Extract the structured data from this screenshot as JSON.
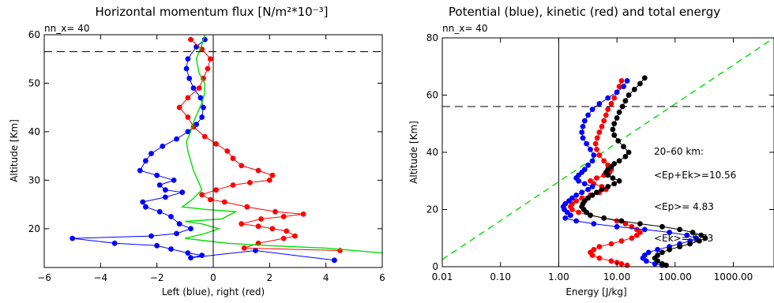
{
  "chart_data": [
    {
      "type": "line",
      "title": "Horizontal momentum flux [N/m²*10⁻³]",
      "subtitle": "nn_x=   40",
      "xlabel": "Left (blue), right (red)",
      "ylabel": "Altitude [Km]",
      "xlim": [
        -6,
        6
      ],
      "ylim": [
        12,
        60
      ],
      "xticks": [
        "−6",
        "−4",
        "−2",
        "0",
        "2",
        "4",
        "6"
      ],
      "yticks": [
        "20",
        "30",
        "40",
        "50",
        "60"
      ],
      "xtick_values": [
        -6,
        -4,
        -2,
        0,
        2,
        4,
        6
      ],
      "ytick_values": [
        20,
        30,
        40,
        50,
        60
      ],
      "hline": 56.5,
      "vline": 0,
      "series": [
        {
          "color": "#0000ff",
          "markers": true,
          "points": [
            [
              -0.3,
              59
            ],
            [
              -0.6,
              57.5
            ],
            [
              -0.9,
              55
            ],
            [
              -0.95,
              53
            ],
            [
              -0.85,
              51
            ],
            [
              -0.7,
              49
            ],
            [
              -0.45,
              47
            ],
            [
              -0.35,
              45
            ],
            [
              -0.4,
              43
            ],
            [
              -0.6,
              41.5
            ],
            [
              -0.9,
              40
            ],
            [
              -1.3,
              38.5
            ],
            [
              -1.8,
              37
            ],
            [
              -2.2,
              35.5
            ],
            [
              -2.4,
              34
            ],
            [
              -2.6,
              32
            ],
            [
              -2.0,
              31
            ],
            [
              -1.4,
              30
            ],
            [
              -1.9,
              29
            ],
            [
              -1.7,
              28
            ],
            [
              -1.1,
              27.5
            ],
            [
              -1.7,
              26.5
            ],
            [
              -2.5,
              25.5
            ],
            [
              -2.4,
              24.5
            ],
            [
              -1.9,
              23.5
            ],
            [
              -1.5,
              22.5
            ],
            [
              -1.2,
              21
            ],
            [
              -0.8,
              20
            ],
            [
              -1.3,
              19
            ],
            [
              -2.2,
              18.5
            ],
            [
              -5.0,
              18
            ],
            [
              -3.5,
              17
            ],
            [
              -2.0,
              16.5
            ],
            [
              -1.5,
              15.8
            ],
            [
              -0.9,
              15
            ],
            [
              -0.4,
              14.5
            ],
            [
              -0.8,
              14
            ],
            [
              1.5,
              15.5
            ],
            [
              4.3,
              13.5
            ]
          ]
        },
        {
          "color": "#ff0000",
          "markers": true,
          "points": [
            [
              -0.8,
              59
            ],
            [
              -0.4,
              57
            ],
            [
              -0.1,
              55
            ],
            [
              -0.2,
              53
            ],
            [
              -0.35,
              51
            ],
            [
              -0.5,
              49
            ],
            [
              -0.9,
              47
            ],
            [
              -1.2,
              45
            ],
            [
              -0.9,
              43
            ],
            [
              -0.7,
              41
            ],
            [
              -0.3,
              39
            ],
            [
              0.1,
              37.5
            ],
            [
              0.5,
              36
            ],
            [
              0.7,
              34.5
            ],
            [
              1.0,
              33
            ],
            [
              1.6,
              32
            ],
            [
              2.1,
              31
            ],
            [
              2.0,
              30
            ],
            [
              1.3,
              29.5
            ],
            [
              0.7,
              29
            ],
            [
              0.1,
              28
            ],
            [
              -0.4,
              27
            ],
            [
              -0.1,
              26
            ],
            [
              0.4,
              25.5
            ],
            [
              1.2,
              24.5
            ],
            [
              2.2,
              23.5
            ],
            [
              3.2,
              23
            ],
            [
              2.5,
              22.5
            ],
            [
              1.7,
              22
            ],
            [
              1.0,
              21
            ],
            [
              1.6,
              20.5
            ],
            [
              2.1,
              20
            ],
            [
              2.6,
              19.5
            ],
            [
              2.9,
              18.5
            ],
            [
              2.5,
              18
            ],
            [
              1.6,
              17
            ],
            [
              1.1,
              16
            ],
            [
              4.5,
              15.5
            ]
          ]
        },
        {
          "color": "#00dd00",
          "markers": false,
          "points": [
            [
              -0.3,
              60
            ],
            [
              -0.4,
              58
            ],
            [
              -0.6,
              55
            ],
            [
              -0.5,
              52
            ],
            [
              -0.3,
              50
            ],
            [
              -0.3,
              48
            ],
            [
              -0.4,
              46
            ],
            [
              -0.55,
              44
            ],
            [
              -0.7,
              42
            ],
            [
              -0.8,
              40
            ],
            [
              -0.95,
              38
            ],
            [
              -0.9,
              36
            ],
            [
              -0.8,
              34
            ],
            [
              -0.7,
              32
            ],
            [
              -0.55,
              30
            ],
            [
              -0.4,
              28
            ],
            [
              -0.75,
              26
            ],
            [
              -1.1,
              24.5
            ],
            [
              -0.3,
              24
            ],
            [
              0.8,
              23.5
            ],
            [
              0.3,
              22
            ],
            [
              -1.0,
              21.5
            ],
            [
              -0.4,
              21
            ],
            [
              0.2,
              20
            ],
            [
              -0.3,
              19
            ],
            [
              -1.0,
              18
            ],
            [
              0.5,
              17
            ],
            [
              2.0,
              16.5
            ],
            [
              4.0,
              16
            ],
            [
              6.0,
              15
            ]
          ]
        }
      ]
    },
    {
      "type": "scatter",
      "title": "Potential (blue), kinetic (red) and total energy",
      "subtitle": "nn_x=   40",
      "xlabel": "Energy [J/kg]",
      "ylabel": "Altitude [Km]",
      "xscale": "log",
      "xlim": [
        0.01,
        5000
      ],
      "ylim": [
        0,
        80
      ],
      "xticks": [
        "0.01",
        "0.10",
        "1.00",
        "10.00",
        "100.00",
        "1000.00"
      ],
      "yticks": [
        "0",
        "20",
        "40",
        "60",
        "80"
      ],
      "xtick_values": [
        0.01,
        0.1,
        1,
        10,
        100,
        1000
      ],
      "ytick_values": [
        0,
        20,
        40,
        60,
        80
      ],
      "hline": 56,
      "vline": 1,
      "annotations": [
        "20–60 km:",
        "<Ep+Ek>=10.56",
        "<Ep>=  4.83",
        "<Ek>=  5.73"
      ],
      "series": [
        {
          "color": "#00dd00",
          "dashed": true,
          "points": [
            [
              0.01,
              2.5
            ],
            [
              5000,
              80
            ]
          ]
        },
        {
          "color": "#ff0000",
          "markers": true,
          "points": [
            [
              12,
              65
            ],
            [
              11,
              63
            ],
            [
              10,
              61
            ],
            [
              9,
              59
            ],
            [
              8,
              57
            ],
            [
              7,
              55
            ],
            [
              6.5,
              53
            ],
            [
              6,
              51
            ],
            [
              5.5,
              49
            ],
            [
              5,
              47
            ],
            [
              4.6,
              45
            ],
            [
              4.3,
              43
            ],
            [
              4.5,
              41
            ],
            [
              5,
              39
            ],
            [
              6,
              37
            ],
            [
              7,
              35.5
            ],
            [
              8,
              34
            ],
            [
              7.5,
              33
            ],
            [
              6,
              32
            ],
            [
              4.5,
              31
            ],
            [
              3.5,
              30
            ],
            [
              4,
              29
            ],
            [
              5.5,
              28
            ],
            [
              6.5,
              27
            ],
            [
              5,
              26
            ],
            [
              3.5,
              25
            ],
            [
              2.5,
              24
            ],
            [
              2,
              23
            ],
            [
              1.7,
              22
            ],
            [
              1.6,
              21
            ],
            [
              1.7,
              20
            ],
            [
              2.2,
              19
            ],
            [
              3.5,
              18
            ],
            [
              6,
              17
            ],
            [
              10,
              16
            ],
            [
              14,
              15
            ],
            [
              18,
              14
            ],
            [
              22,
              13
            ],
            [
              25,
              12
            ],
            [
              22,
              11
            ],
            [
              18,
              10
            ],
            [
              12,
              9
            ],
            [
              8,
              8
            ],
            [
              5,
              7
            ],
            [
              4,
              6
            ],
            [
              3.5,
              5
            ],
            [
              3.8,
              4
            ],
            [
              5,
              3
            ],
            [
              8,
              2
            ],
            [
              10,
              1.5
            ],
            [
              12,
              1
            ],
            [
              15,
              0.5
            ]
          ]
        },
        {
          "color": "#0000ff",
          "markers": true,
          "points": [
            [
              15,
              65
            ],
            [
              13,
              63
            ],
            [
              10,
              61
            ],
            [
              7,
              59
            ],
            [
              5,
              57
            ],
            [
              3.8,
              55
            ],
            [
              3.2,
              53
            ],
            [
              2.8,
              51
            ],
            [
              2.6,
              49
            ],
            [
              2.5,
              47
            ],
            [
              2.6,
              45
            ],
            [
              3,
              43
            ],
            [
              3.5,
              41
            ],
            [
              4,
              39
            ],
            [
              3.8,
              37
            ],
            [
              3.2,
              35.5
            ],
            [
              2.8,
              34
            ],
            [
              2.5,
              33
            ],
            [
              2.2,
              32
            ],
            [
              2,
              31
            ],
            [
              2.2,
              30
            ],
            [
              2.8,
              29
            ],
            [
              3.8,
              28
            ],
            [
              3.2,
              27
            ],
            [
              2.5,
              26
            ],
            [
              2,
              25
            ],
            [
              1.7,
              24
            ],
            [
              1.5,
              23
            ],
            [
              1.3,
              22
            ],
            [
              1.2,
              21
            ],
            [
              1.25,
              20
            ],
            [
              1.4,
              19
            ],
            [
              1.6,
              18
            ],
            [
              1.3,
              17
            ],
            [
              2,
              16
            ],
            [
              4,
              15
            ],
            [
              10,
              14
            ],
            [
              30,
              13
            ],
            [
              80,
              12
            ],
            [
              160,
              11
            ],
            [
              230,
              10
            ],
            [
              180,
              9
            ],
            [
              120,
              8
            ],
            [
              80,
              7
            ],
            [
              50,
              6
            ],
            [
              35,
              5
            ],
            [
              30,
              4
            ],
            [
              28,
              3
            ],
            [
              32,
              2
            ],
            [
              45,
              1
            ],
            [
              60,
              0.5
            ]
          ]
        },
        {
          "color": "#000000",
          "markers": true,
          "points": [
            [
              30,
              66
            ],
            [
              25,
              64
            ],
            [
              20,
              62
            ],
            [
              16,
              60
            ],
            [
              14,
              58
            ],
            [
              12.5,
              56
            ],
            [
              11,
              54
            ],
            [
              10,
              52
            ],
            [
              9,
              50
            ],
            [
              8.5,
              48
            ],
            [
              9,
              46
            ],
            [
              10.5,
              44
            ],
            [
              13,
              42
            ],
            [
              16,
              40
            ],
            [
              14,
              38.5
            ],
            [
              11,
              37
            ],
            [
              9,
              36
            ],
            [
              8,
              35
            ],
            [
              7,
              34
            ],
            [
              6.5,
              33
            ],
            [
              7,
              32
            ],
            [
              8.5,
              31
            ],
            [
              11,
              30
            ],
            [
              9,
              29
            ],
            [
              7,
              28
            ],
            [
              5.5,
              27
            ],
            [
              4.5,
              26
            ],
            [
              3.8,
              25
            ],
            [
              3.2,
              24
            ],
            [
              2.8,
              23
            ],
            [
              2.6,
              22
            ],
            [
              2.5,
              21
            ],
            [
              2.7,
              20
            ],
            [
              3,
              19
            ],
            [
              3.5,
              18
            ],
            [
              6,
              17
            ],
            [
              12,
              16
            ],
            [
              25,
              15
            ],
            [
              60,
              14
            ],
            [
              120,
              13
            ],
            [
              200,
              12
            ],
            [
              280,
              11
            ],
            [
              330,
              10
            ],
            [
              260,
              9
            ],
            [
              180,
              8
            ],
            [
              120,
              7
            ],
            [
              80,
              6
            ],
            [
              60,
              5
            ],
            [
              50,
              4
            ],
            [
              45,
              3
            ],
            [
              50,
              2
            ],
            [
              60,
              1
            ],
            [
              70,
              0.5
            ]
          ]
        }
      ]
    }
  ]
}
